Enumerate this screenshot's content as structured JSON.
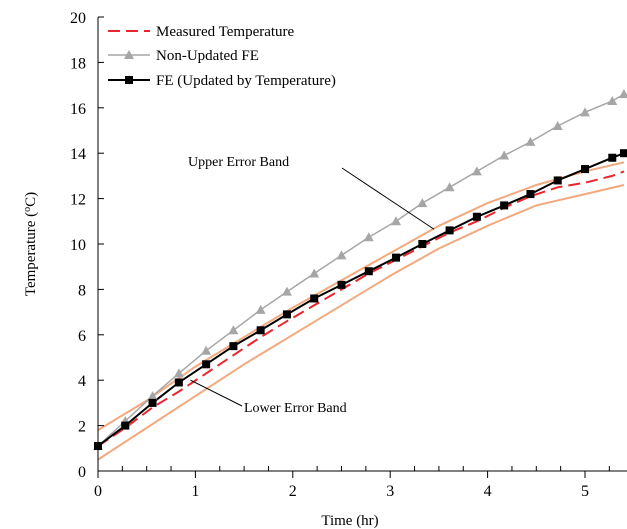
{
  "chart_data": {
    "type": "line",
    "title": "",
    "xlabel": "Time (hr)",
    "ylabel": "Temperature (oC)",
    "ylabel_parts": {
      "main": "Temperature  (",
      "sup": "o",
      "unit": "C)"
    },
    "xlim": [
      0,
      5.4
    ],
    "ylim": [
      0,
      20
    ],
    "xticks": [
      0,
      1,
      2,
      3,
      4,
      5
    ],
    "yticks": [
      0,
      2,
      4,
      6,
      8,
      10,
      12,
      14,
      16,
      18,
      20
    ],
    "grid": false,
    "legend_position": "top-left",
    "series": [
      {
        "name": "Measured Temperature",
        "style": "dashed",
        "color": "#e8262b",
        "marker": "none",
        "x": [
          0,
          0.28,
          0.56,
          0.83,
          1.11,
          1.39,
          1.67,
          1.94,
          2.22,
          2.5,
          2.78,
          3.06,
          3.33,
          3.61,
          3.89,
          4.17,
          4.44,
          4.72,
          5.0,
          5.28,
          5.4
        ],
        "y": [
          1.1,
          1.9,
          2.8,
          3.5,
          4.3,
          5.1,
          5.9,
          6.6,
          7.3,
          8.0,
          8.7,
          9.3,
          9.9,
          10.5,
          11.0,
          11.6,
          12.1,
          12.5,
          12.7,
          13.0,
          13.2
        ]
      },
      {
        "name": "Non-Updated FE",
        "style": "solid",
        "color": "#a6a6a6",
        "marker": "triangle",
        "x": [
          0,
          0.28,
          0.56,
          0.83,
          1.11,
          1.39,
          1.67,
          1.94,
          2.22,
          2.5,
          2.78,
          3.06,
          3.33,
          3.61,
          3.89,
          4.17,
          4.44,
          4.72,
          5.0,
          5.28,
          5.4
        ],
        "y": [
          1.1,
          2.2,
          3.3,
          4.3,
          5.3,
          6.2,
          7.1,
          7.9,
          8.7,
          9.5,
          10.3,
          11.0,
          11.8,
          12.5,
          13.2,
          13.9,
          14.5,
          15.2,
          15.8,
          16.3,
          16.6
        ]
      },
      {
        "name": "FE (Updated by Temperature)",
        "style": "solid",
        "color": "#000000",
        "marker": "square",
        "x": [
          0,
          0.28,
          0.56,
          0.83,
          1.11,
          1.39,
          1.67,
          1.94,
          2.22,
          2.5,
          2.78,
          3.06,
          3.33,
          3.61,
          3.89,
          4.17,
          4.44,
          4.72,
          5.0,
          5.28,
          5.4
        ],
        "y": [
          1.1,
          2.0,
          3.0,
          3.9,
          4.7,
          5.5,
          6.2,
          6.9,
          7.6,
          8.2,
          8.8,
          9.4,
          10.0,
          10.6,
          11.2,
          11.7,
          12.2,
          12.8,
          13.3,
          13.8,
          14.0
        ]
      }
    ],
    "bands": [
      {
        "label": "Upper Error Band",
        "color": "#f2a97e",
        "x": [
          0,
          0.5,
          1.0,
          1.5,
          2.0,
          2.5,
          3.0,
          3.5,
          4.0,
          4.5,
          5.0,
          5.4
        ],
        "y": [
          1.8,
          3.1,
          4.6,
          5.9,
          7.2,
          8.4,
          9.6,
          10.8,
          11.8,
          12.6,
          13.2,
          13.6
        ]
      },
      {
        "label": "Lower Error Band",
        "color": "#f2a97e",
        "x": [
          0,
          0.5,
          1.0,
          1.5,
          2.0,
          2.5,
          3.0,
          3.5,
          4.0,
          4.5,
          5.0,
          5.4
        ],
        "y": [
          0.5,
          1.9,
          3.3,
          4.7,
          6.0,
          7.3,
          8.6,
          9.8,
          10.8,
          11.7,
          12.2,
          12.6
        ]
      }
    ],
    "annotations": [
      {
        "text": "Upper Error Band",
        "point": [
          3.45,
          10.65
        ]
      },
      {
        "text": "Lower Error Band",
        "point": [
          0.95,
          4.0
        ]
      }
    ]
  }
}
